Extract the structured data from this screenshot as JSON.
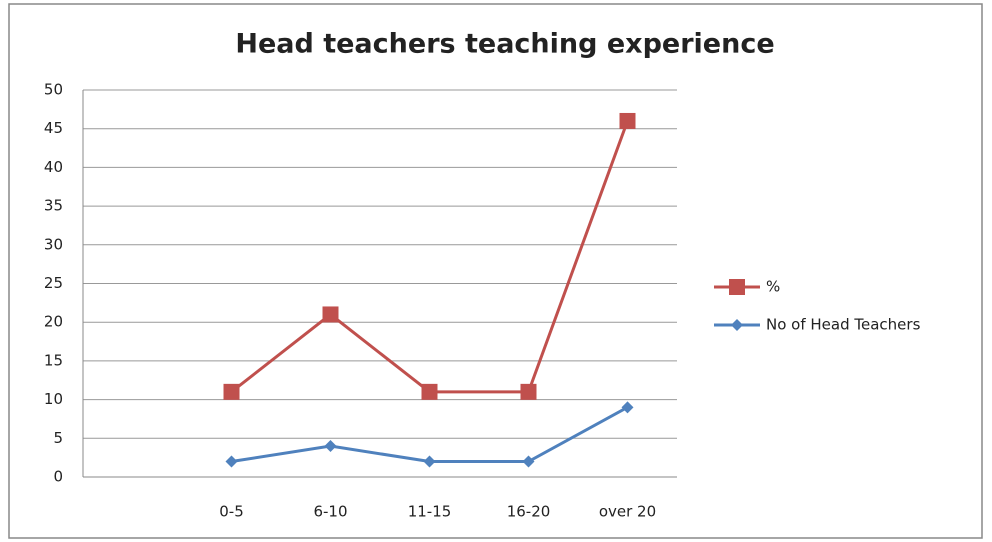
{
  "chart_data": {
    "type": "line",
    "title": "Head teachers teaching experience",
    "categories": [
      null,
      "0-5",
      "6-10",
      "11-15",
      "16-20",
      "over 20"
    ],
    "series": [
      {
        "name": "%",
        "color": "#c0504d",
        "marker": "square",
        "values": [
          null,
          11,
          21,
          11,
          11,
          46
        ]
      },
      {
        "name": "No of Head Teachers",
        "color": "#4f81bd",
        "marker": "diamond",
        "values": [
          null,
          2,
          4,
          2,
          2,
          9
        ]
      }
    ],
    "ylim": [
      0,
      50
    ],
    "yticks": [
      0,
      5,
      10,
      15,
      20,
      25,
      30,
      35,
      40,
      45,
      50
    ],
    "grid": true,
    "legend": "right"
  }
}
